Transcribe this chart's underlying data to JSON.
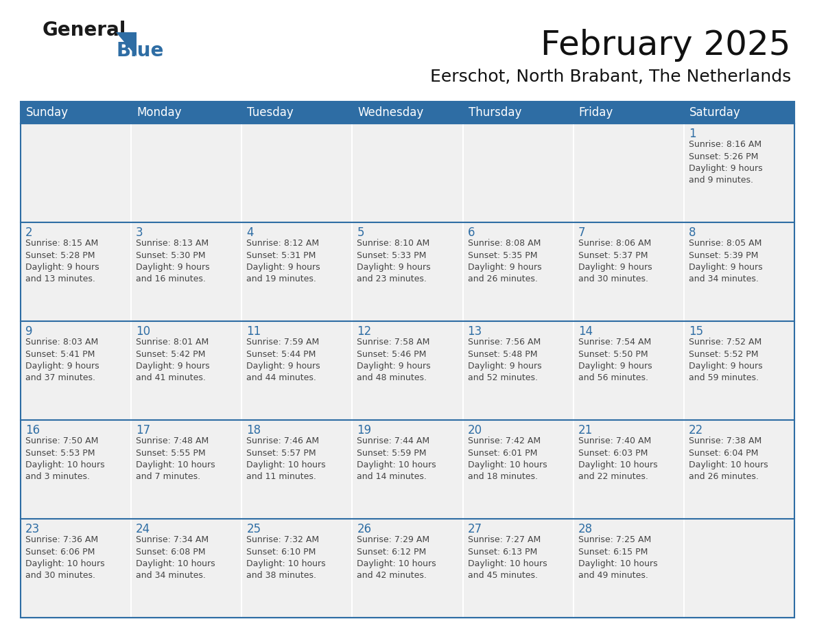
{
  "title": "February 2025",
  "subtitle": "Eerschot, North Brabant, The Netherlands",
  "header_color": "#2E6DA4",
  "header_text_color": "#FFFFFF",
  "cell_bg_color": "#F0F0F0",
  "border_color": "#2E6DA4",
  "day_number_color": "#2E6DA4",
  "text_color": "#444444",
  "days_of_week": [
    "Sunday",
    "Monday",
    "Tuesday",
    "Wednesday",
    "Thursday",
    "Friday",
    "Saturday"
  ],
  "weeks": [
    [
      {
        "day": "",
        "info": ""
      },
      {
        "day": "",
        "info": ""
      },
      {
        "day": "",
        "info": ""
      },
      {
        "day": "",
        "info": ""
      },
      {
        "day": "",
        "info": ""
      },
      {
        "day": "",
        "info": ""
      },
      {
        "day": "1",
        "info": "Sunrise: 8:16 AM\nSunset: 5:26 PM\nDaylight: 9 hours\nand 9 minutes."
      }
    ],
    [
      {
        "day": "2",
        "info": "Sunrise: 8:15 AM\nSunset: 5:28 PM\nDaylight: 9 hours\nand 13 minutes."
      },
      {
        "day": "3",
        "info": "Sunrise: 8:13 AM\nSunset: 5:30 PM\nDaylight: 9 hours\nand 16 minutes."
      },
      {
        "day": "4",
        "info": "Sunrise: 8:12 AM\nSunset: 5:31 PM\nDaylight: 9 hours\nand 19 minutes."
      },
      {
        "day": "5",
        "info": "Sunrise: 8:10 AM\nSunset: 5:33 PM\nDaylight: 9 hours\nand 23 minutes."
      },
      {
        "day": "6",
        "info": "Sunrise: 8:08 AM\nSunset: 5:35 PM\nDaylight: 9 hours\nand 26 minutes."
      },
      {
        "day": "7",
        "info": "Sunrise: 8:06 AM\nSunset: 5:37 PM\nDaylight: 9 hours\nand 30 minutes."
      },
      {
        "day": "8",
        "info": "Sunrise: 8:05 AM\nSunset: 5:39 PM\nDaylight: 9 hours\nand 34 minutes."
      }
    ],
    [
      {
        "day": "9",
        "info": "Sunrise: 8:03 AM\nSunset: 5:41 PM\nDaylight: 9 hours\nand 37 minutes."
      },
      {
        "day": "10",
        "info": "Sunrise: 8:01 AM\nSunset: 5:42 PM\nDaylight: 9 hours\nand 41 minutes."
      },
      {
        "day": "11",
        "info": "Sunrise: 7:59 AM\nSunset: 5:44 PM\nDaylight: 9 hours\nand 44 minutes."
      },
      {
        "day": "12",
        "info": "Sunrise: 7:58 AM\nSunset: 5:46 PM\nDaylight: 9 hours\nand 48 minutes."
      },
      {
        "day": "13",
        "info": "Sunrise: 7:56 AM\nSunset: 5:48 PM\nDaylight: 9 hours\nand 52 minutes."
      },
      {
        "day": "14",
        "info": "Sunrise: 7:54 AM\nSunset: 5:50 PM\nDaylight: 9 hours\nand 56 minutes."
      },
      {
        "day": "15",
        "info": "Sunrise: 7:52 AM\nSunset: 5:52 PM\nDaylight: 9 hours\nand 59 minutes."
      }
    ],
    [
      {
        "day": "16",
        "info": "Sunrise: 7:50 AM\nSunset: 5:53 PM\nDaylight: 10 hours\nand 3 minutes."
      },
      {
        "day": "17",
        "info": "Sunrise: 7:48 AM\nSunset: 5:55 PM\nDaylight: 10 hours\nand 7 minutes."
      },
      {
        "day": "18",
        "info": "Sunrise: 7:46 AM\nSunset: 5:57 PM\nDaylight: 10 hours\nand 11 minutes."
      },
      {
        "day": "19",
        "info": "Sunrise: 7:44 AM\nSunset: 5:59 PM\nDaylight: 10 hours\nand 14 minutes."
      },
      {
        "day": "20",
        "info": "Sunrise: 7:42 AM\nSunset: 6:01 PM\nDaylight: 10 hours\nand 18 minutes."
      },
      {
        "day": "21",
        "info": "Sunrise: 7:40 AM\nSunset: 6:03 PM\nDaylight: 10 hours\nand 22 minutes."
      },
      {
        "day": "22",
        "info": "Sunrise: 7:38 AM\nSunset: 6:04 PM\nDaylight: 10 hours\nand 26 minutes."
      }
    ],
    [
      {
        "day": "23",
        "info": "Sunrise: 7:36 AM\nSunset: 6:06 PM\nDaylight: 10 hours\nand 30 minutes."
      },
      {
        "day": "24",
        "info": "Sunrise: 7:34 AM\nSunset: 6:08 PM\nDaylight: 10 hours\nand 34 minutes."
      },
      {
        "day": "25",
        "info": "Sunrise: 7:32 AM\nSunset: 6:10 PM\nDaylight: 10 hours\nand 38 minutes."
      },
      {
        "day": "26",
        "info": "Sunrise: 7:29 AM\nSunset: 6:12 PM\nDaylight: 10 hours\nand 42 minutes."
      },
      {
        "day": "27",
        "info": "Sunrise: 7:27 AM\nSunset: 6:13 PM\nDaylight: 10 hours\nand 45 minutes."
      },
      {
        "day": "28",
        "info": "Sunrise: 7:25 AM\nSunset: 6:15 PM\nDaylight: 10 hours\nand 49 minutes."
      },
      {
        "day": "",
        "info": ""
      }
    ]
  ],
  "logo_general_color": "#1a1a1a",
  "logo_blue_color": "#2E6DA4",
  "logo_triangle_color": "#2E6DA4",
  "title_fontsize": 36,
  "subtitle_fontsize": 18,
  "header_fontsize": 12,
  "day_num_fontsize": 12,
  "cell_text_fontsize": 9,
  "logo_fontsize": 20,
  "fig_width": 11.88,
  "fig_height": 9.18,
  "dpi": 100
}
